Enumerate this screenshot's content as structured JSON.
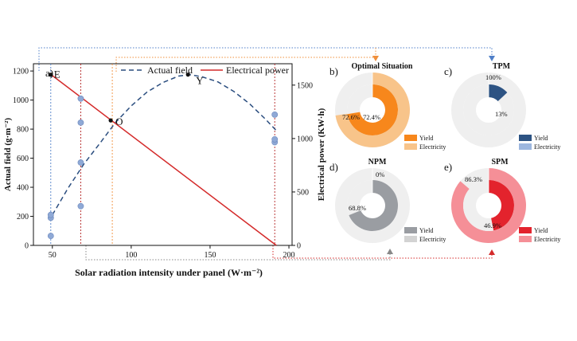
{
  "chart_data": [
    {
      "panel": "a)",
      "type": "line",
      "title": "",
      "xlabel": "Solar radiation intensity under panel (W·m⁻²)",
      "ylabel": "Actual field (g·m⁻²)",
      "ylabel_right": "Electrical power (KW·h)",
      "xlim": [
        38,
        202
      ],
      "ylim": [
        0,
        1250
      ],
      "ylim_right": [
        0,
        1700
      ],
      "xticks": [
        "50",
        "100",
        "150",
        "200"
      ],
      "yticks": [
        "0",
        "200",
        "400",
        "600",
        "800",
        "1000",
        "1200"
      ],
      "yticks_right": [
        "0",
        "500",
        "1000",
        "1500"
      ],
      "legend": [
        "Actual field",
        "Electrical power"
      ],
      "legend_position": "top-right",
      "series": [
        {
          "name": "Actual field",
          "style": "dashed",
          "color": "#2a4d7f",
          "axis": "left",
          "x": [
            50,
            60,
            70,
            80,
            90,
            100,
            110,
            120,
            130,
            137,
            145,
            155,
            165,
            175,
            185,
            192
          ],
          "y": [
            210,
            395,
            560,
            700,
            845,
            960,
            1055,
            1120,
            1165,
            1175,
            1160,
            1125,
            1060,
            975,
            870,
            790
          ]
        },
        {
          "name": "Electrical power",
          "style": "solid",
          "color": "#d42a2a",
          "axis": "right",
          "x": [
            49,
            192
          ],
          "y": [
            1600,
            0
          ]
        }
      ],
      "scatter": {
        "color": "#8fa9d6",
        "points": [
          [
            49,
            65
          ],
          [
            49,
            190
          ],
          [
            49,
            210
          ],
          [
            68,
            270
          ],
          [
            68,
            570
          ],
          [
            68,
            845
          ],
          [
            68,
            1010
          ],
          [
            191,
            710
          ],
          [
            191,
            730
          ],
          [
            191,
            900
          ]
        ]
      },
      "annotations": [
        {
          "label": "E",
          "x": 49,
          "y": 1175
        },
        {
          "label": "O",
          "x": 87,
          "y": 860
        },
        {
          "label": "Y",
          "x": 136,
          "y": 1175
        }
      ],
      "reference_lines": {
        "x": [
          49,
          68,
          88,
          191
        ]
      }
    },
    {
      "panel": "b)",
      "type": "pie",
      "title": "Optimal Situation",
      "rings": [
        {
          "name": "Electricity",
          "value": 72.6,
          "label": "72.6%",
          "color": "#f8c48a"
        },
        {
          "name": "Yield",
          "value": 72.4,
          "label": "72.4%",
          "color": "#f7871c"
        }
      ],
      "legend": [
        "Yield",
        "Electricity"
      ]
    },
    {
      "panel": "c)",
      "type": "pie",
      "title": "TPM",
      "rings": [
        {
          "name": "Electricity",
          "value": 100,
          "label": "100%",
          "color": "#9db7df"
        },
        {
          "name": "Yield",
          "value": 13,
          "label": "13%",
          "color": "#2d5383"
        }
      ],
      "legend": [
        "Yield",
        "Electricity"
      ]
    },
    {
      "panel": "d)",
      "type": "pie",
      "title": "NPM",
      "rings": [
        {
          "name": "Electricity",
          "value": 0,
          "label": "0%",
          "color": "#d3d3d3"
        },
        {
          "name": "Yield",
          "value": 68.8,
          "label": "68.8%",
          "color": "#9a9da2"
        }
      ],
      "legend": [
        "Yield",
        "Electricity"
      ]
    },
    {
      "panel": "e)",
      "type": "pie",
      "title": "SPM",
      "rings": [
        {
          "name": "Electricity",
          "value": 86.3,
          "label": "86.3%",
          "color": "#f58f97"
        },
        {
          "name": "Yield",
          "value": 46.9,
          "label": "46.9%",
          "color": "#e3232d"
        }
      ],
      "legend": [
        "Yield",
        "Electricity"
      ]
    }
  ]
}
